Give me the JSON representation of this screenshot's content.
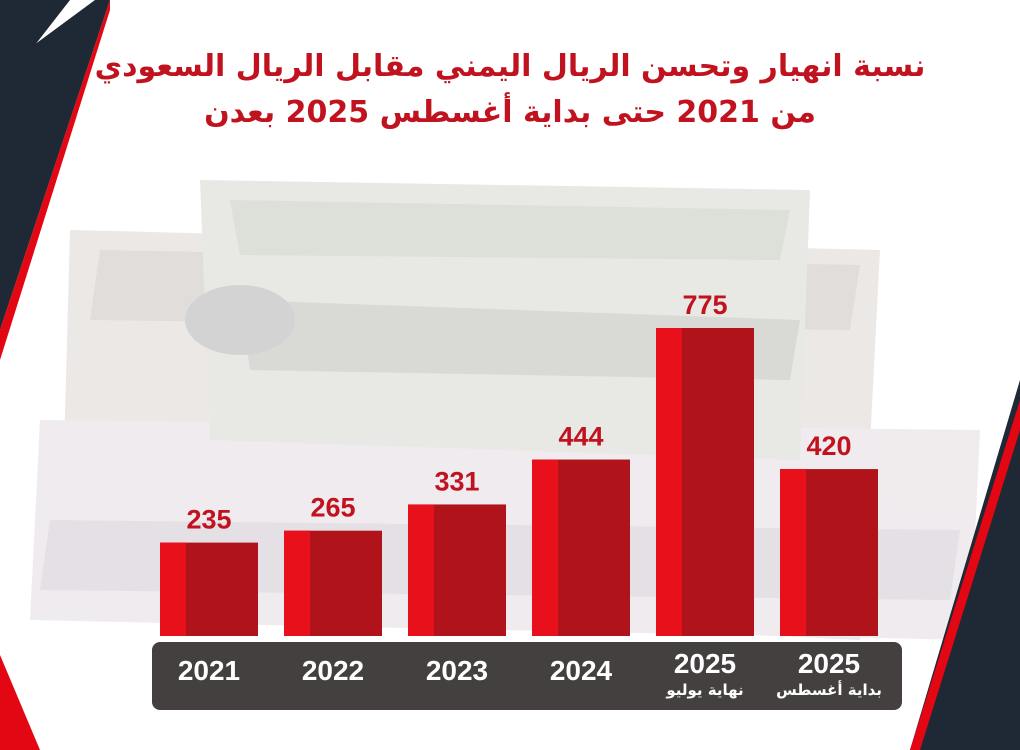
{
  "chart_data": {
    "type": "bar",
    "title_line1": "نسبة انهيار وتحسن الريال اليمني مقابل الريال السعودي",
    "title_line2": "من 2021  حتى بداية أغسطس 2025 بعدن",
    "categories": [
      "2021",
      "2022",
      "2023",
      "2024",
      "2025",
      "2025"
    ],
    "sublabels": [
      "",
      "",
      "",
      "",
      "نهاية يوليو",
      "بداية أغسطس"
    ],
    "values": [
      235,
      265,
      331,
      444,
      775,
      420
    ],
    "ylim": [
      0,
      775
    ],
    "grid": false,
    "bar_color_dark": "#b0131a",
    "bar_color_light": "#e8101b",
    "value_label_color": "#c1121f",
    "axis_band_color": "#43403f"
  },
  "colors": {
    "navy": "#1f2935",
    "red": "#e30613"
  }
}
